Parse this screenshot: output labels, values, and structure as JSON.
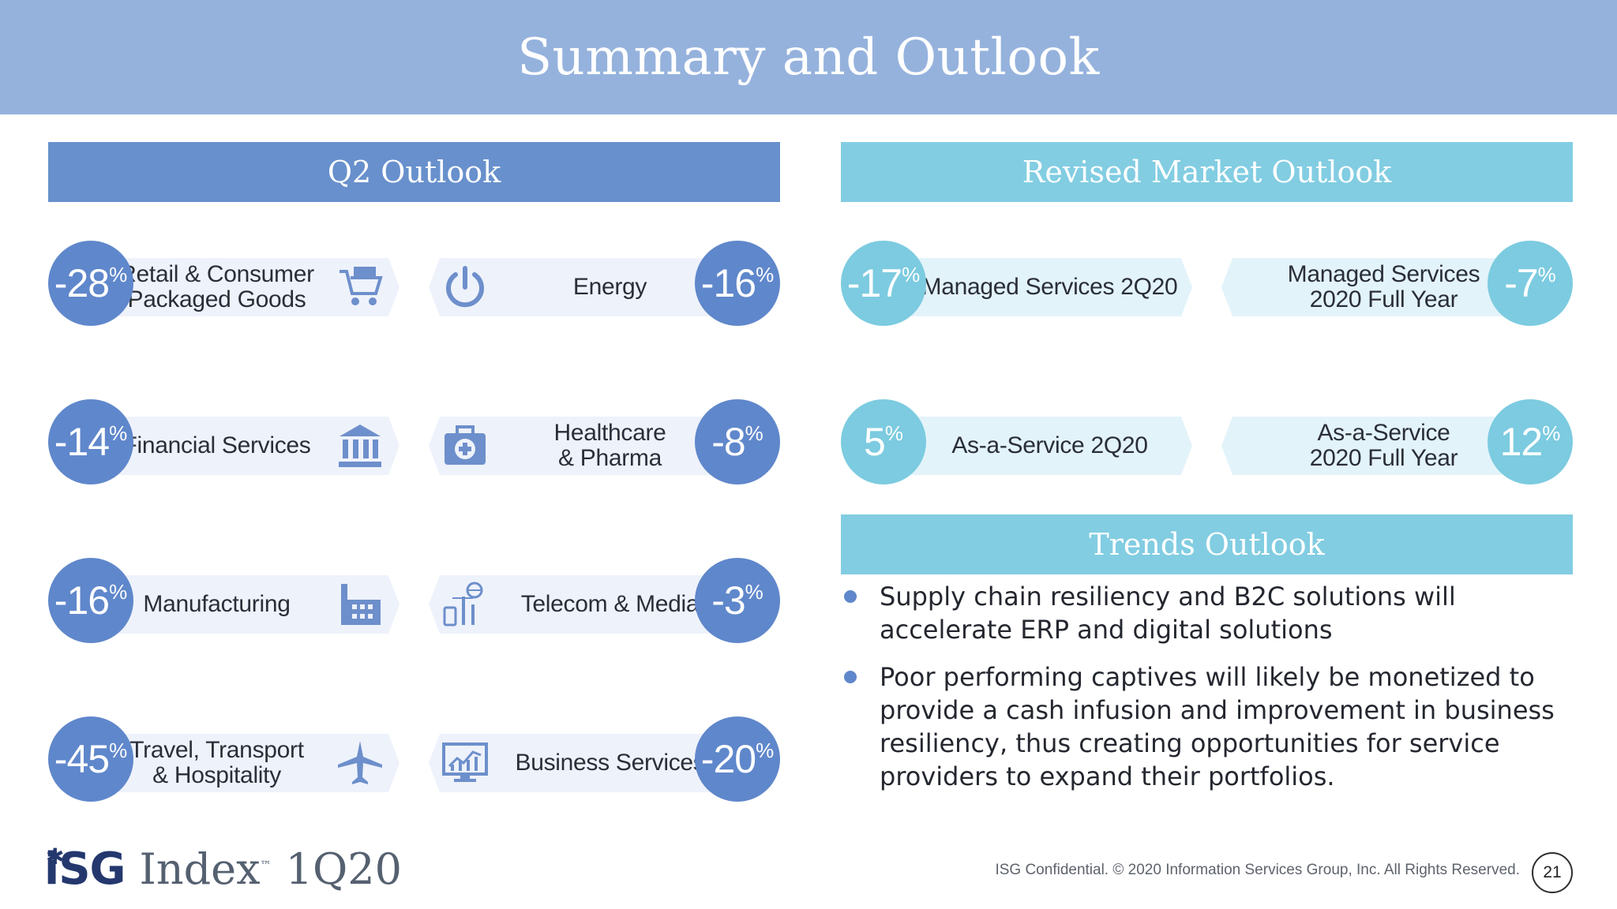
{
  "title": "Summary and Outlook",
  "headers": {
    "q2": "Q2 Outlook",
    "market": "Revised Market Outlook",
    "trends": "Trends Outlook"
  },
  "q2_items": [
    {
      "value": "-28",
      "label": "Retail & Consumer\nPackaged Goods",
      "icon": "shopping-cart-icon"
    },
    {
      "value": "-16",
      "label": "Energy",
      "icon": "power-icon"
    },
    {
      "value": "-14",
      "label": "Financial Services",
      "icon": "bank-icon"
    },
    {
      "value": "-8",
      "label": "Healthcare\n& Pharma",
      "icon": "first-aid-kit-icon"
    },
    {
      "value": "-16",
      "label": "Manufacturing",
      "icon": "factory-icon"
    },
    {
      "value": "-3",
      "label": "Telecom & Media",
      "icon": "telecom-network-icon"
    },
    {
      "value": "-45",
      "label": "Travel, Transport\n& Hospitality",
      "icon": "airplane-icon"
    },
    {
      "value": "-20",
      "label": "Business Services",
      "icon": "chart-monitor-icon"
    }
  ],
  "market_items": [
    {
      "value": "-17",
      "label": "Managed Services 2Q20"
    },
    {
      "value": "-7",
      "label": "Managed Services\n2020 Full Year"
    },
    {
      "value": "5",
      "label": "As-a-Service 2Q20"
    },
    {
      "value": "12",
      "label": "As-a-Service\n2020 Full Year"
    }
  ],
  "percent_symbol": "%",
  "trends": [
    "Supply chain resiliency and B2C solutions will accelerate ERP and digital solutions",
    "Poor performing captives will likely be monetized to provide a cash infusion and improvement in business resiliency, thus creating opportunities for service providers to expand their portfolios."
  ],
  "logo": {
    "brand": "iSG",
    "product": "Index",
    "tm": "™",
    "period": "1Q20"
  },
  "footer": "ISG Confidential. © 2020 Information Services Group, Inc.  All Rights Reserved.",
  "page_number": "21",
  "colors": {
    "banner": "#95b2dd",
    "q2_accent": "#6890cc",
    "market_accent": "#82cde2",
    "dark_circle": "#5f87cb",
    "light_circle": "#7ccbe0"
  }
}
